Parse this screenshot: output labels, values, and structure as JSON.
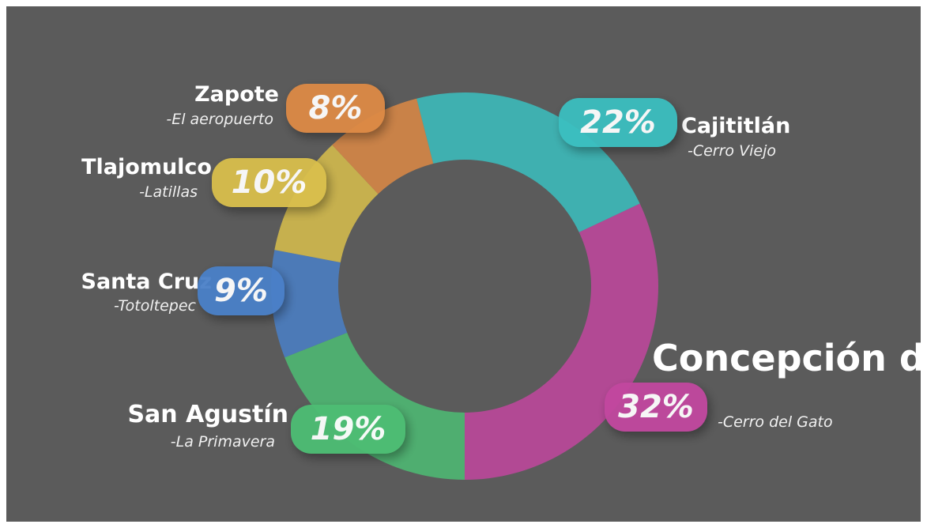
{
  "chart_data": {
    "type": "pie",
    "donut": true,
    "categories": [
      "Cajititlán",
      "Concepción del Valle",
      "San Agustín",
      "Santa Cruz",
      "Tlajomulco",
      "Zapote"
    ],
    "subtitles": [
      "-Cerro Viejo",
      "-Cerro del Gato",
      "-La Primavera",
      "-Totoltepec",
      "-Latillas",
      "-El aeropuerto"
    ],
    "values": [
      22,
      32,
      19,
      9,
      10,
      8
    ],
    "value_labels": [
      "22%",
      "32%",
      "19%",
      "9%",
      "10%",
      "8%"
    ],
    "colors": [
      "#3bbfc0",
      "#c2479f",
      "#4dbd74",
      "#4a80c8",
      "#d9bf4c",
      "#dd8a45"
    ]
  }
}
